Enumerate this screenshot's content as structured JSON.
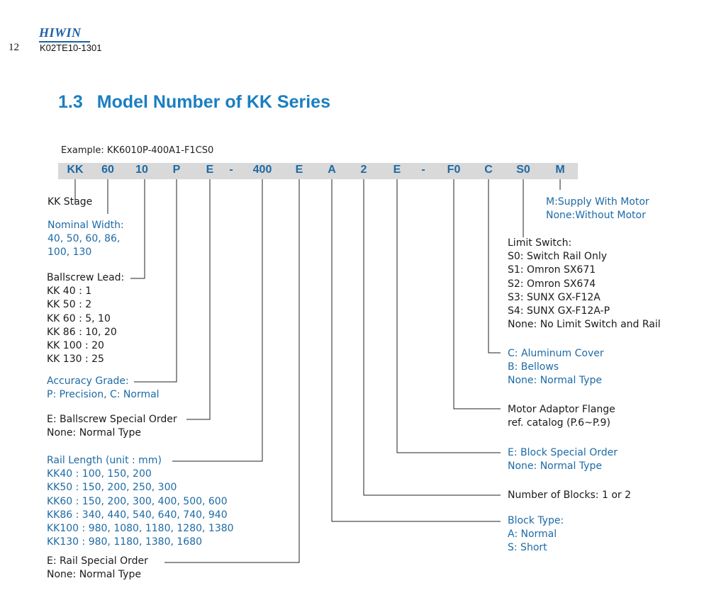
{
  "header": {
    "logo": "HIWIN",
    "page_number": "12",
    "doc_id": "K02TE10-1301"
  },
  "title": {
    "number": "1.3",
    "text": "Model Number of KK Series"
  },
  "example": "Example: KK6010P-400A1-F1CS0",
  "segments": [
    {
      "text": "KK"
    },
    {
      "text": "60"
    },
    {
      "text": "10"
    },
    {
      "text": "P"
    },
    {
      "text": "E"
    },
    {
      "text": "-"
    },
    {
      "text": "400"
    },
    {
      "text": "E"
    },
    {
      "text": "A"
    },
    {
      "text": "2"
    },
    {
      "text": "E"
    },
    {
      "text": "-"
    },
    {
      "text": "F0"
    },
    {
      "text": "C"
    },
    {
      "text": "S0"
    },
    {
      "text": "M"
    }
  ],
  "left_labels": {
    "kk_stage": [
      "KK Stage"
    ],
    "nominal_width": [
      "Nominal Width:",
      "40, 50, 60, 86,",
      "100, 130"
    ],
    "ballscrew_lead": [
      "Ballscrew Lead:",
      "KK 40 : 1",
      "KK 50 : 2",
      "KK 60 : 5, 10",
      "KK 86 : 10, 20",
      "KK 100 : 20",
      "KK 130 : 25"
    ],
    "accuracy_grade": [
      "Accuracy Grade:",
      "P: Precision, C: Normal"
    ],
    "ballscrew_special": [
      "E: Ballscrew Special Order",
      "None: Normal Type"
    ],
    "rail_length": [
      "Rail Length (unit : mm)",
      "KK40 : 100, 150, 200",
      "KK50 : 150, 200, 250, 300",
      "KK60 : 150, 200, 300,  400,  500, 600",
      "KK86 : 340, 440, 540, 640, 740, 940",
      "KK100 : 980, 1080, 1180, 1280, 1380",
      "KK130 : 980, 1180, 1380, 1680"
    ],
    "rail_special": [
      "E: Rail Special Order",
      "None: Normal Type"
    ]
  },
  "right_labels": {
    "motor": [
      "M:Supply With Motor",
      "None:Without Motor"
    ],
    "limit_switch": [
      "Limit Switch:",
      "S0: Switch Rail Only",
      "S1: Omron SX671",
      "S2: Omron SX674",
      "S3: SUNX GX-F12A",
      "S4: SUNX GX-F12A-P",
      "None: No Limit Switch and Rail"
    ],
    "cover": [
      "C: Aluminum Cover",
      "B: Bellows",
      "None: Normal Type"
    ],
    "motor_flange": [
      "Motor Adaptor Flange",
      "ref. catalog (P.6~P.9)"
    ],
    "block_special": [
      "E: Block Special Order",
      "None: Normal Type"
    ],
    "blocks": [
      "Number of Blocks: 1 or 2"
    ],
    "block_type": [
      "Block Type:",
      "A: Normal",
      "S: Short"
    ]
  },
  "colors": {
    "accent": "#1a7fc1",
    "label_blue": "#1d6aa5",
    "bar_gray": "#d9d9d9"
  }
}
